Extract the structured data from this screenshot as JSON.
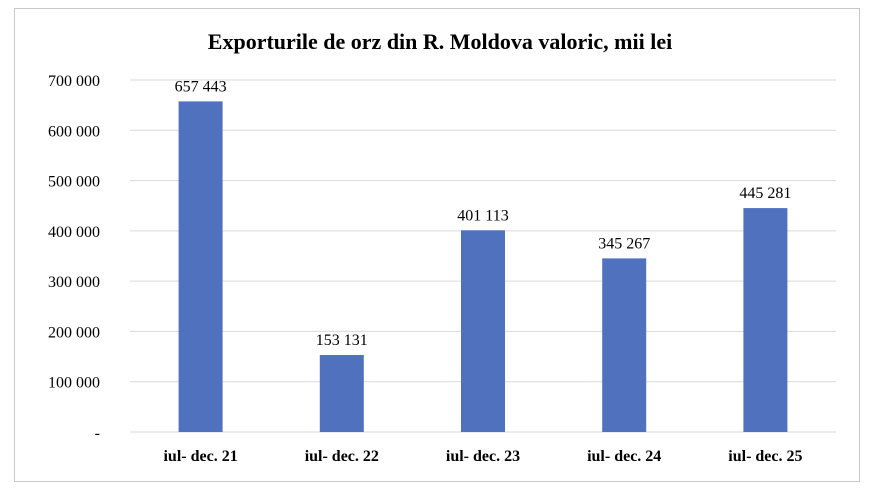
{
  "chart_data": {
    "type": "bar",
    "title": "Exporturile de orz din R. Moldova valoric, mii lei",
    "categories": [
      "iul- dec. 21",
      "iul- dec. 22",
      "iul- dec. 23",
      "iul- dec. 24",
      "iul- dec. 25"
    ],
    "values": [
      657443,
      153131,
      401113,
      345267,
      445281
    ],
    "data_labels": [
      "657 443",
      "153 131",
      "401 113",
      "345 267",
      "445 281"
    ],
    "yticks": [
      0,
      100000,
      200000,
      300000,
      400000,
      500000,
      600000,
      700000
    ],
    "ytick_labels": [
      "-",
      "100 000",
      "200 000",
      "300 000",
      "400 000",
      "500 000",
      "600 000",
      "700 000"
    ],
    "ylim": [
      0,
      700000
    ],
    "grid": true,
    "legend": "none",
    "bar_color": "#4f71be",
    "grid_color": "#d9d9d9"
  }
}
